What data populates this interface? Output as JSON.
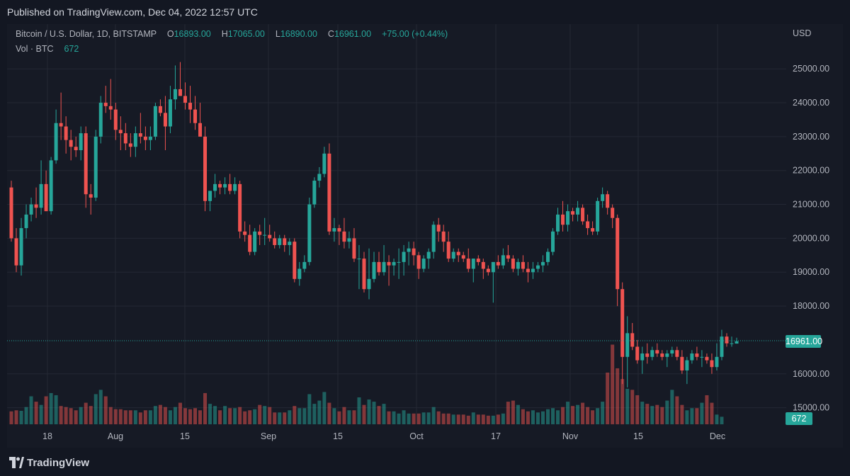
{
  "header": {
    "published": "Published on TradingView.com, Dec 04, 2022 12:57 UTC"
  },
  "legend": {
    "symbol": "Bitcoin / U.S. Dollar, 1D, BITSTAMP",
    "open_key": "O",
    "open": "16893.00",
    "high_key": "H",
    "high": "17065.00",
    "low_key": "L",
    "low": "16890.00",
    "close_key": "C",
    "close": "16961.00",
    "change": "+75.00 (+0.44%)",
    "vol_label": "Vol · BTC",
    "vol_value": "672"
  },
  "price_axis": {
    "currency": "USD",
    "ticks": [
      "25000.00",
      "24000.00",
      "23000.00",
      "22000.00",
      "21000.00",
      "20000.00",
      "19000.00",
      "18000.00",
      "16000.00",
      "15000.00"
    ]
  },
  "price_tag": "16961.00",
  "vol_tag": "672",
  "time_axis": {
    "labels": [
      "18",
      "Aug",
      "15",
      "Sep",
      "15",
      "Oct",
      "17",
      "Nov",
      "15",
      "Dec"
    ]
  },
  "footer": {
    "brand": "TradingView"
  },
  "colors": {
    "up": "#26a69a",
    "down": "#ef5350",
    "background": "#161a25",
    "grid": "#242834"
  },
  "chart_data": {
    "type": "candlestick",
    "title": "Bitcoin / U.S. Dollar, 1D, BITSTAMP",
    "ylabel": "USD",
    "ylim": [
      14500,
      25500
    ],
    "x_tick_labels": [
      "18",
      "Aug",
      "15",
      "Sep",
      "15",
      "Oct",
      "17",
      "Nov",
      "15",
      "Dec"
    ],
    "series": [
      {
        "name": "OHLC",
        "values": [
          [
            21500,
            21700,
            19900,
            20000
          ],
          [
            20000,
            20300,
            19000,
            19200
          ],
          [
            19200,
            20600,
            18900,
            20300
          ],
          [
            20300,
            21000,
            20000,
            20700
          ],
          [
            20700,
            21200,
            20500,
            21000
          ],
          [
            21000,
            21500,
            20600,
            20900
          ],
          [
            20900,
            22300,
            20700,
            21600
          ],
          [
            21600,
            22000,
            20800,
            20800
          ],
          [
            20800,
            22400,
            20700,
            22300
          ],
          [
            22300,
            23800,
            22200,
            23400
          ],
          [
            23400,
            24300,
            22900,
            23300
          ],
          [
            23300,
            23600,
            22500,
            22900
          ],
          [
            22900,
            23200,
            22300,
            22700
          ],
          [
            22700,
            23000,
            22400,
            22600
          ],
          [
            22600,
            23300,
            22300,
            23100
          ],
          [
            23100,
            23300,
            20900,
            21300
          ],
          [
            21300,
            21600,
            20700,
            21200
          ],
          [
            21200,
            23200,
            21100,
            23000
          ],
          [
            23000,
            24200,
            22800,
            24000
          ],
          [
            24000,
            24500,
            23700,
            23900
          ],
          [
            23900,
            24700,
            23500,
            23800
          ],
          [
            23800,
            24000,
            22900,
            23200
          ],
          [
            23200,
            23600,
            22600,
            23100
          ],
          [
            23100,
            23400,
            22600,
            22800
          ],
          [
            22800,
            23100,
            22400,
            22700
          ],
          [
            22700,
            23300,
            22400,
            23100
          ],
          [
            23100,
            23700,
            22800,
            23000
          ],
          [
            23000,
            23300,
            22600,
            22900
          ],
          [
            22900,
            23300,
            22600,
            23000
          ],
          [
            23000,
            24000,
            22900,
            23900
          ],
          [
            23900,
            24100,
            23600,
            23700
          ],
          [
            23700,
            24200,
            22600,
            23300
          ],
          [
            23300,
            24500,
            23100,
            24100
          ],
          [
            24100,
            25100,
            23800,
            24400
          ],
          [
            24400,
            25200,
            24200,
            24200
          ],
          [
            24200,
            24600,
            23800,
            24000
          ],
          [
            24000,
            24500,
            23400,
            23800
          ],
          [
            23800,
            24200,
            23200,
            23400
          ],
          [
            23400,
            24000,
            23000,
            23000
          ],
          [
            23000,
            23300,
            20800,
            21100
          ],
          [
            21100,
            21400,
            20800,
            21400
          ],
          [
            21400,
            21900,
            21200,
            21600
          ],
          [
            21600,
            21700,
            21300,
            21500
          ],
          [
            21500,
            21800,
            21300,
            21600
          ],
          [
            21600,
            21900,
            21300,
            21400
          ],
          [
            21400,
            21800,
            21300,
            21600
          ],
          [
            21600,
            21700,
            20000,
            20200
          ],
          [
            20200,
            20500,
            19900,
            20100
          ],
          [
            20100,
            20400,
            19500,
            19600
          ],
          [
            19600,
            20300,
            19500,
            20200
          ],
          [
            20200,
            20400,
            19800,
            20100
          ],
          [
            20100,
            20600,
            19800,
            20100
          ],
          [
            20100,
            20400,
            19900,
            20000
          ],
          [
            20000,
            20200,
            19700,
            19800
          ],
          [
            19800,
            20100,
            19700,
            20000
          ],
          [
            20000,
            20100,
            19600,
            19800
          ],
          [
            19800,
            20000,
            19500,
            19900
          ],
          [
            19900,
            20000,
            18700,
            18800
          ],
          [
            18800,
            19300,
            18600,
            19100
          ],
          [
            19100,
            19500,
            19000,
            19300
          ],
          [
            19300,
            21200,
            19200,
            21000
          ],
          [
            21000,
            21800,
            20900,
            21700
          ],
          [
            21700,
            22100,
            21500,
            21900
          ],
          [
            21900,
            22700,
            21800,
            22500
          ],
          [
            22500,
            22800,
            20100,
            20200
          ],
          [
            20200,
            20600,
            19900,
            20300
          ],
          [
            20300,
            20400,
            19800,
            20200
          ],
          [
            20200,
            20600,
            19700,
            19900
          ],
          [
            19900,
            20200,
            19700,
            20000
          ],
          [
            20000,
            20300,
            19300,
            19400
          ],
          [
            19400,
            19800,
            18500,
            19400
          ],
          [
            19400,
            19600,
            18400,
            18500
          ],
          [
            18500,
            19700,
            18200,
            18800
          ],
          [
            18800,
            19600,
            18700,
            19300
          ],
          [
            19300,
            19600,
            18900,
            19000
          ],
          [
            19000,
            19800,
            18900,
            19300
          ],
          [
            19300,
            19500,
            18600,
            19200
          ],
          [
            19200,
            19400,
            18900,
            19300
          ],
          [
            19300,
            19700,
            18800,
            19300
          ],
          [
            19300,
            19800,
            18900,
            19600
          ],
          [
            19600,
            19900,
            19200,
            19700
          ],
          [
            19700,
            19900,
            19200,
            19500
          ],
          [
            19500,
            19600,
            18800,
            19100
          ],
          [
            19100,
            19500,
            19000,
            19400
          ],
          [
            19400,
            19700,
            19100,
            19600
          ],
          [
            19600,
            20500,
            19400,
            20400
          ],
          [
            20400,
            20600,
            19900,
            20200
          ],
          [
            20200,
            20400,
            19600,
            19900
          ],
          [
            19900,
            20200,
            19300,
            19400
          ],
          [
            19400,
            19700,
            19300,
            19600
          ],
          [
            19600,
            19700,
            19300,
            19500
          ],
          [
            19500,
            19600,
            19300,
            19400
          ],
          [
            19400,
            19700,
            19000,
            19100
          ],
          [
            19100,
            19400,
            18700,
            19400
          ],
          [
            19400,
            19500,
            19200,
            19300
          ],
          [
            19300,
            19400,
            18800,
            19100
          ],
          [
            19100,
            19200,
            18900,
            19000
          ],
          [
            19000,
            19200,
            18100,
            19300
          ],
          [
            19300,
            19500,
            19100,
            19200
          ],
          [
            19200,
            19700,
            19100,
            19500
          ],
          [
            19500,
            19800,
            19300,
            19400
          ],
          [
            19400,
            19500,
            19000,
            19100
          ],
          [
            19100,
            19400,
            18900,
            19300
          ],
          [
            19300,
            19500,
            19000,
            19100
          ],
          [
            19100,
            19300,
            18700,
            19000
          ],
          [
            19000,
            19300,
            18800,
            19100
          ],
          [
            19100,
            19300,
            19000,
            19200
          ],
          [
            19200,
            19500,
            19000,
            19300
          ],
          [
            19300,
            19700,
            19200,
            19600
          ],
          [
            19600,
            20300,
            19500,
            20200
          ],
          [
            20200,
            20900,
            20100,
            20700
          ],
          [
            20700,
            21100,
            20200,
            20400
          ],
          [
            20400,
            21000,
            20200,
            20800
          ],
          [
            20800,
            20900,
            20500,
            20700
          ],
          [
            20700,
            21100,
            20500,
            20900
          ],
          [
            20900,
            21000,
            20400,
            20500
          ],
          [
            20500,
            20700,
            20100,
            20300
          ],
          [
            20300,
            20500,
            20100,
            20200
          ],
          [
            20200,
            21200,
            20100,
            21100
          ],
          [
            21100,
            21500,
            20900,
            21300
          ],
          [
            21300,
            21400,
            20700,
            20900
          ],
          [
            20900,
            21000,
            20300,
            20600
          ],
          [
            20600,
            20700,
            18000,
            18500
          ],
          [
            18500,
            18700,
            15700,
            16500
          ],
          [
            16500,
            17700,
            15600,
            17200
          ],
          [
            17200,
            17500,
            16700,
            16800
          ],
          [
            16800,
            17000,
            16300,
            16400
          ],
          [
            16400,
            16800,
            16000,
            16600
          ],
          [
            16600,
            16900,
            16300,
            16500
          ],
          [
            16500,
            16800,
            16400,
            16700
          ],
          [
            16700,
            16900,
            16500,
            16600
          ],
          [
            16600,
            16700,
            16400,
            16500
          ],
          [
            16500,
            16700,
            16200,
            16600
          ],
          [
            16600,
            16800,
            16500,
            16700
          ],
          [
            16700,
            16800,
            16400,
            16500
          ],
          [
            16500,
            16700,
            16000,
            16100
          ],
          [
            16100,
            16500,
            15700,
            16400
          ],
          [
            16400,
            16700,
            16300,
            16600
          ],
          [
            16600,
            16800,
            16400,
            16500
          ],
          [
            16500,
            16700,
            16200,
            16500
          ],
          [
            16500,
            16600,
            16300,
            16400
          ],
          [
            16400,
            16600,
            16000,
            16200
          ],
          [
            16200,
            16900,
            16100,
            16500
          ],
          [
            16500,
            17300,
            16400,
            17100
          ],
          [
            17100,
            17200,
            16800,
            16900
          ],
          [
            16900,
            17100,
            16800,
            16900
          ],
          [
            16893,
            17065,
            16890,
            16961
          ]
        ]
      },
      {
        "name": "Vol · BTC",
        "values": [
          1200,
          1300,
          1250,
          1600,
          2600,
          2100,
          1800,
          2600,
          2900,
          2700,
          1700,
          1600,
          1500,
          1300,
          1600,
          2000,
          1700,
          2800,
          3200,
          2600,
          1600,
          1400,
          1400,
          1300,
          1300,
          1300,
          1100,
          1300,
          1300,
          1700,
          1800,
          1600,
          1300,
          1600,
          2000,
          1500,
          1400,
          1500,
          1300,
          2900,
          1900,
          1700,
          1300,
          1700,
          1500,
          1500,
          1600,
          1200,
          1300,
          1400,
          1800,
          1700,
          1600,
          1100,
          1100,
          1100,
          1300,
          1700,
          1500,
          1500,
          2800,
          1900,
          2200,
          3000,
          2000,
          1500,
          1200,
          1600,
          1300,
          1300,
          2500,
          1800,
          2300,
          2100,
          1700,
          1900,
          1200,
          1200,
          1000,
          1300,
          1000,
          1000,
          1000,
          1100,
          1100,
          1600,
          1200,
          1000,
          1000,
          900,
          900,
          900,
          800,
          1100,
          900,
          900,
          800,
          800,
          900,
          1000,
          2100,
          2200,
          1800,
          1400,
          1200,
          1300,
          1100,
          1200,
          1400,
          1500,
          1300,
          1600,
          2100,
          1700,
          1800,
          2000,
          1600,
          1300,
          1500,
          2100,
          4800,
          7400,
          5200,
          4200,
          3300,
          3200,
          2700,
          2100,
          1900,
          1700,
          1800,
          1600,
          2200,
          3200,
          2600,
          1800,
          1300,
          1500,
          1500,
          2000,
          2700,
          2000,
          900,
          700
        ]
      }
    ]
  }
}
